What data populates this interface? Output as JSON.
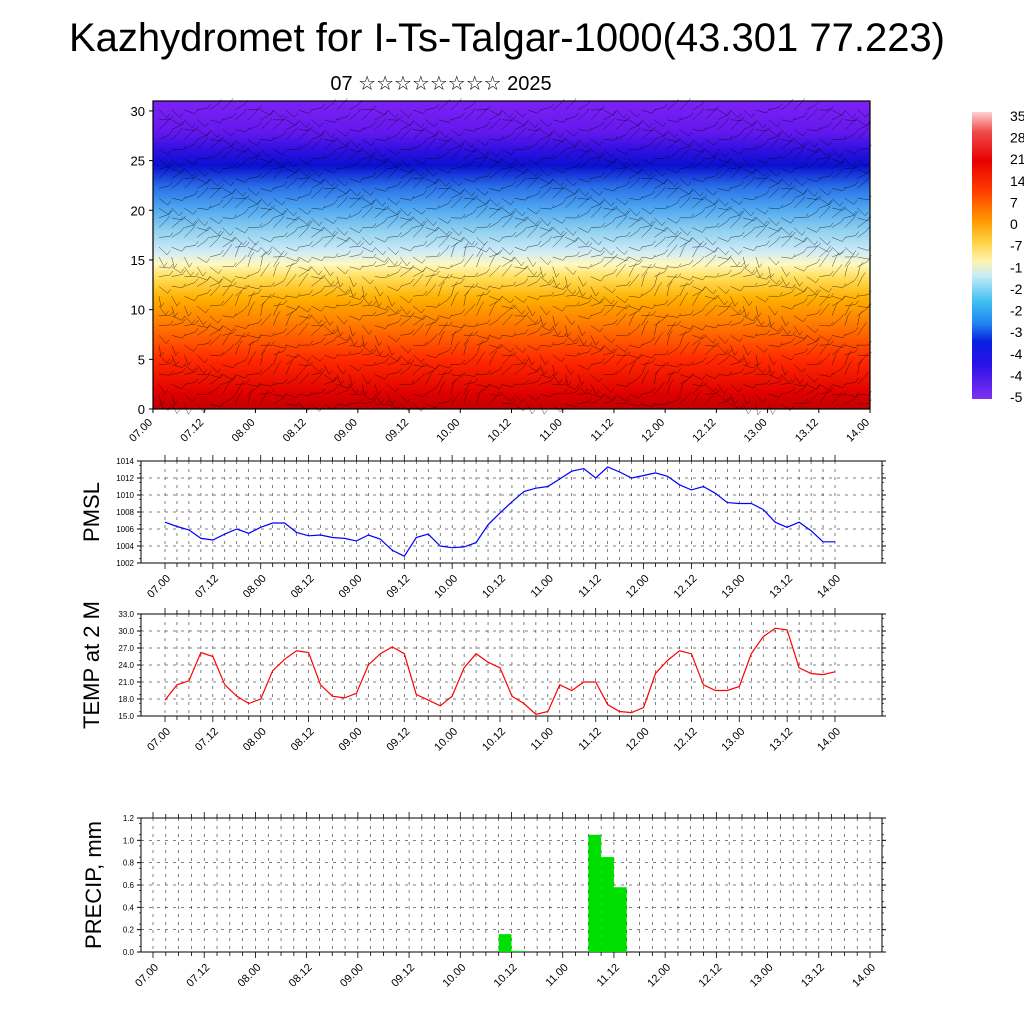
{
  "title": "Kazhydromet for I-Ts-Talgar-1000(43.301 77.223)",
  "subtitle": "07 ☆☆☆☆☆☆☆☆ 2025",
  "colors": {
    "pmsl_line": "#0000ff",
    "temp_line": "#ff0000",
    "precip_bar": "#00e000",
    "grid": "#000000"
  },
  "chart_data": [
    {
      "type": "heatmap",
      "name": "cross-section",
      "title": "",
      "xlabel": "",
      "ylabel": "",
      "x_ticks": [
        "07.00",
        "07.12",
        "08.00",
        "08.12",
        "09.00",
        "09.12",
        "10.00",
        "10.12",
        "11.00",
        "11.12",
        "12.00",
        "12.12",
        "13.00",
        "13.12",
        "14.00"
      ],
      "y_ticks": [
        "0",
        "5",
        "10",
        "15",
        "20",
        "25",
        "30"
      ],
      "ylim": [
        0,
        31
      ],
      "colorbar_labels": [
        "35",
        "28",
        "21",
        "14",
        "7",
        "0",
        "-7",
        "-1",
        "-2",
        "-2",
        "-3",
        "-4",
        "-4",
        "-5"
      ],
      "colorbar_range": [
        -56,
        35
      ],
      "overlay": "wind barbs"
    },
    {
      "type": "line",
      "name": "pmsl",
      "ylabel": "PMSL",
      "y_ticks": [
        "1002",
        "1004",
        "1006",
        "1008",
        "1010",
        "1012",
        "1014"
      ],
      "ylim": [
        1002,
        1014
      ],
      "x_ticks": [
        "07.00",
        "07.12",
        "08.00",
        "08.12",
        "09.00",
        "09.12",
        "10.00",
        "10.12",
        "11.00",
        "11.12",
        "12.00",
        "12.12",
        "13.00",
        "13.12",
        "14.00"
      ],
      "x": [
        0,
        3,
        6,
        9,
        12,
        15,
        18,
        21,
        24,
        27,
        30,
        33,
        36,
        39,
        42,
        45,
        48,
        51,
        54,
        57,
        60,
        63,
        66,
        69,
        72,
        75,
        78,
        81,
        84,
        87,
        90,
        93,
        96,
        99,
        102,
        105,
        108,
        111,
        114,
        117,
        120,
        123,
        126,
        129,
        132,
        135,
        138,
        141,
        144,
        147,
        150,
        153,
        156,
        159,
        162,
        165,
        168
      ],
      "values": [
        1006.8,
        1006.3,
        1005.9,
        1004.9,
        1004.7,
        1005.4,
        1006.0,
        1005.5,
        1006.2,
        1006.7,
        1006.7,
        1005.6,
        1005.2,
        1005.3,
        1005.0,
        1004.9,
        1004.6,
        1005.3,
        1004.8,
        1003.5,
        1002.8,
        1005.0,
        1005.4,
        1004.0,
        1003.8,
        1003.9,
        1004.4,
        1006.5,
        1007.9,
        1009.2,
        1010.4,
        1010.8,
        1011.0,
        1011.9,
        1012.8,
        1013.1,
        1012.0,
        1013.3,
        1012.7,
        1012.0,
        1012.3,
        1012.6,
        1012.2,
        1011.2,
        1010.6,
        1011.0,
        1010.2,
        1009.1,
        1009.0,
        1009.0,
        1008.3,
        1006.8,
        1006.2,
        1006.8,
        1005.8,
        1004.5,
        1004.5
      ]
    },
    {
      "type": "line",
      "name": "temperature",
      "ylabel": "TEMP at 2 M",
      "y_ticks": [
        "15.0",
        "18.0",
        "21.0",
        "24.0",
        "27.0",
        "30.0",
        "33.0"
      ],
      "ylim": [
        15,
        33
      ],
      "x_ticks": [
        "07.00",
        "07.12",
        "08.00",
        "08.12",
        "09.00",
        "09.12",
        "10.00",
        "10.12",
        "11.00",
        "11.12",
        "12.00",
        "12.12",
        "13.00",
        "13.12",
        "14.00"
      ],
      "x": [
        0,
        3,
        6,
        9,
        12,
        15,
        18,
        21,
        24,
        27,
        30,
        33,
        36,
        39,
        42,
        45,
        48,
        51,
        54,
        57,
        60,
        63,
        66,
        69,
        72,
        75,
        78,
        81,
        84,
        87,
        90,
        93,
        96,
        99,
        102,
        105,
        108,
        111,
        114,
        117,
        120,
        123,
        126,
        129,
        132,
        135,
        138,
        141,
        144,
        147,
        150,
        153,
        156,
        159,
        162,
        165,
        168
      ],
      "values": [
        17.8,
        20.5,
        21.2,
        26.2,
        25.5,
        20.5,
        18.5,
        17.2,
        18.0,
        23.0,
        25.0,
        26.5,
        26.2,
        20.5,
        18.5,
        18.2,
        19.0,
        24.0,
        26.0,
        27.2,
        26.0,
        18.8,
        17.8,
        16.8,
        18.5,
        23.5,
        26.0,
        24.5,
        23.5,
        18.5,
        17.2,
        15.3,
        15.8,
        20.5,
        19.5,
        21.0,
        21.0,
        17.0,
        15.8,
        15.6,
        16.5,
        22.5,
        24.8,
        26.5,
        26.0,
        20.5,
        19.5,
        19.5,
        20.2,
        26.0,
        29.0,
        30.5,
        30.2,
        23.5,
        22.5,
        22.3,
        22.8
      ]
    },
    {
      "type": "bar",
      "name": "precipitation",
      "ylabel": "PRECIP, mm",
      "y_ticks": [
        "0.0",
        "0.2",
        "0.4",
        "0.6",
        "0.8",
        "1.0",
        "1.2"
      ],
      "ylim": [
        0,
        1.2
      ],
      "x_ticks": [
        "07.00",
        "07.12",
        "08.00",
        "08.12",
        "09.00",
        "09.12",
        "10.00",
        "10.12",
        "11.00",
        "11.12",
        "12.00",
        "12.12",
        "13.00",
        "13.12",
        "14.00"
      ],
      "bars": [
        {
          "x": 81,
          "value": 0.16
        },
        {
          "x": 84,
          "value": 0.01
        },
        {
          "x": 102,
          "value": 1.05
        },
        {
          "x": 105,
          "value": 0.85
        },
        {
          "x": 108,
          "value": 0.58
        }
      ]
    }
  ]
}
